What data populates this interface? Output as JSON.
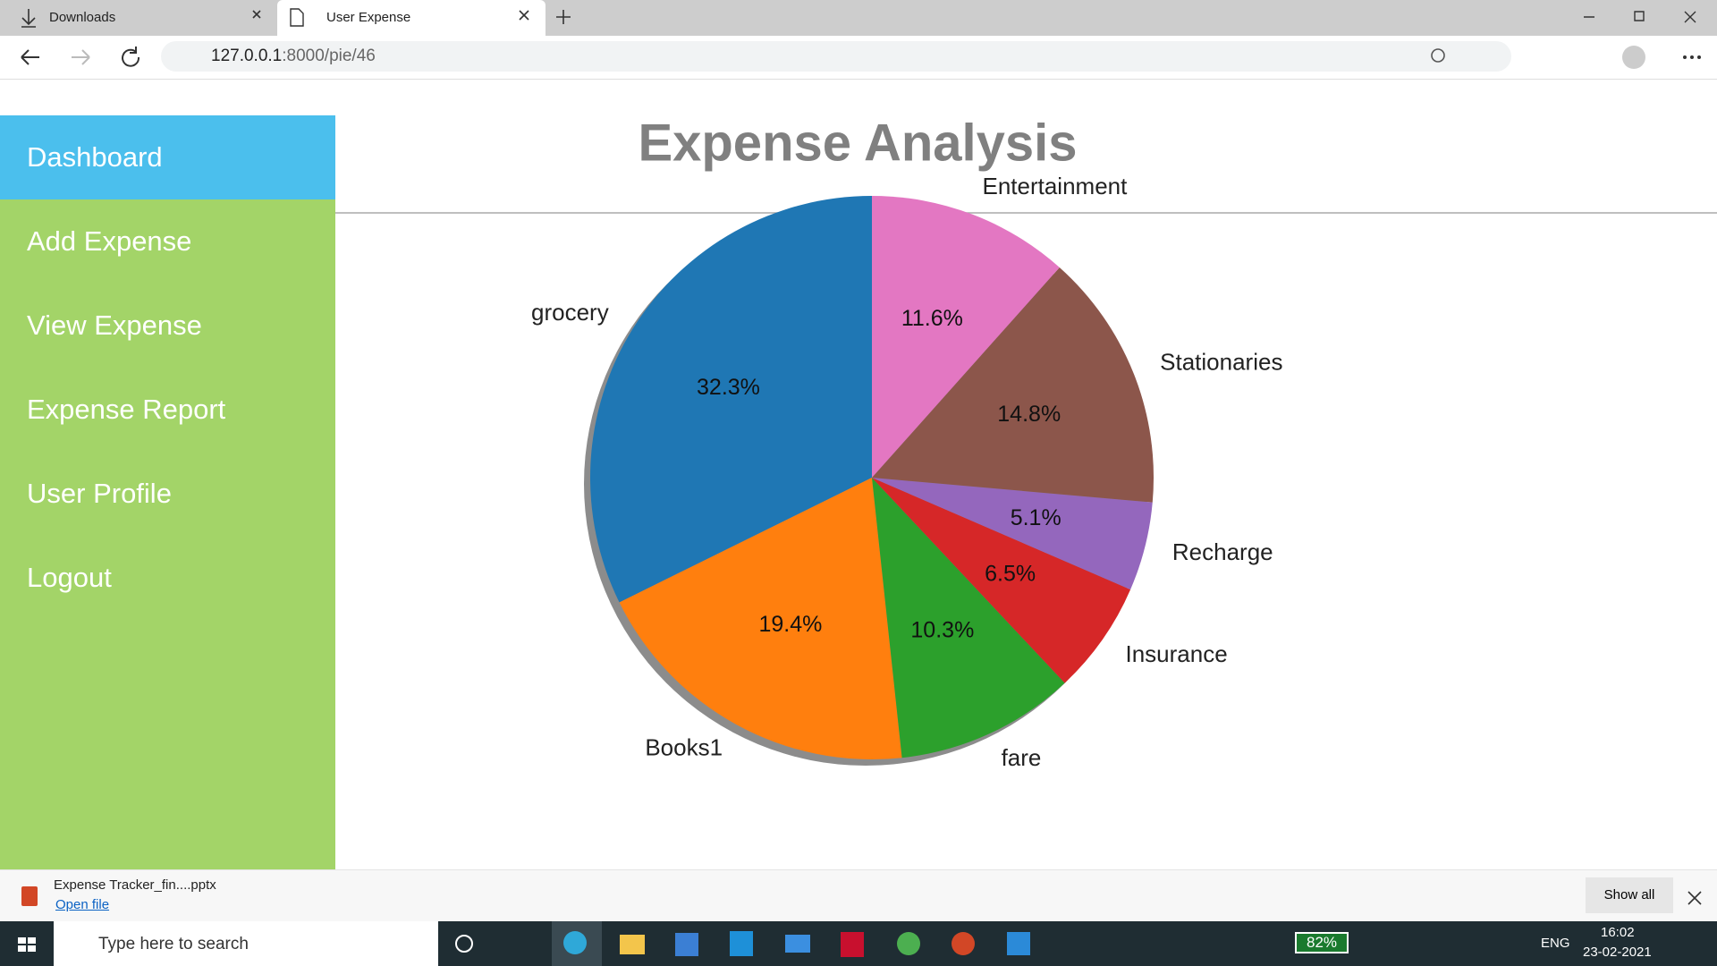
{
  "browser": {
    "tabs": [
      "Downloads",
      "User Expense"
    ],
    "url_host": "127.0.0.1",
    "url_path": ":8000/pie/46"
  },
  "sidebar": {
    "items": [
      "Dashboard",
      "Add Expense",
      "View Expense",
      "Expense Report",
      "User Profile",
      "Logout"
    ]
  },
  "chart_data": {
    "type": "pie",
    "title": "Expense Analysis",
    "categories": [
      "grocery",
      "Books1",
      "fare",
      "Insurance",
      "Recharge",
      "Stationaries",
      "Entertainment"
    ],
    "values": [
      32.3,
      19.4,
      10.3,
      6.5,
      5.1,
      14.8,
      11.6
    ],
    "value_labels": [
      "32.3%",
      "19.4%",
      "10.3%",
      "6.5%",
      "5.1%",
      "14.8%",
      "11.6%"
    ],
    "colors": [
      "#1f77b4",
      "#ff7f0e",
      "#2ca02c",
      "#d62728",
      "#9467bd",
      "#8c564b",
      "#e377c2"
    ],
    "start_angle": 90,
    "shadow": true
  },
  "download_bar": {
    "file": "Expense Tracker_fin....pptx",
    "action": "Open file",
    "show_all": "Show all"
  },
  "taskbar": {
    "search": "Type here to search",
    "battery": "82%",
    "language": "ENG",
    "time": "16:02",
    "date": "23-02-2021"
  }
}
